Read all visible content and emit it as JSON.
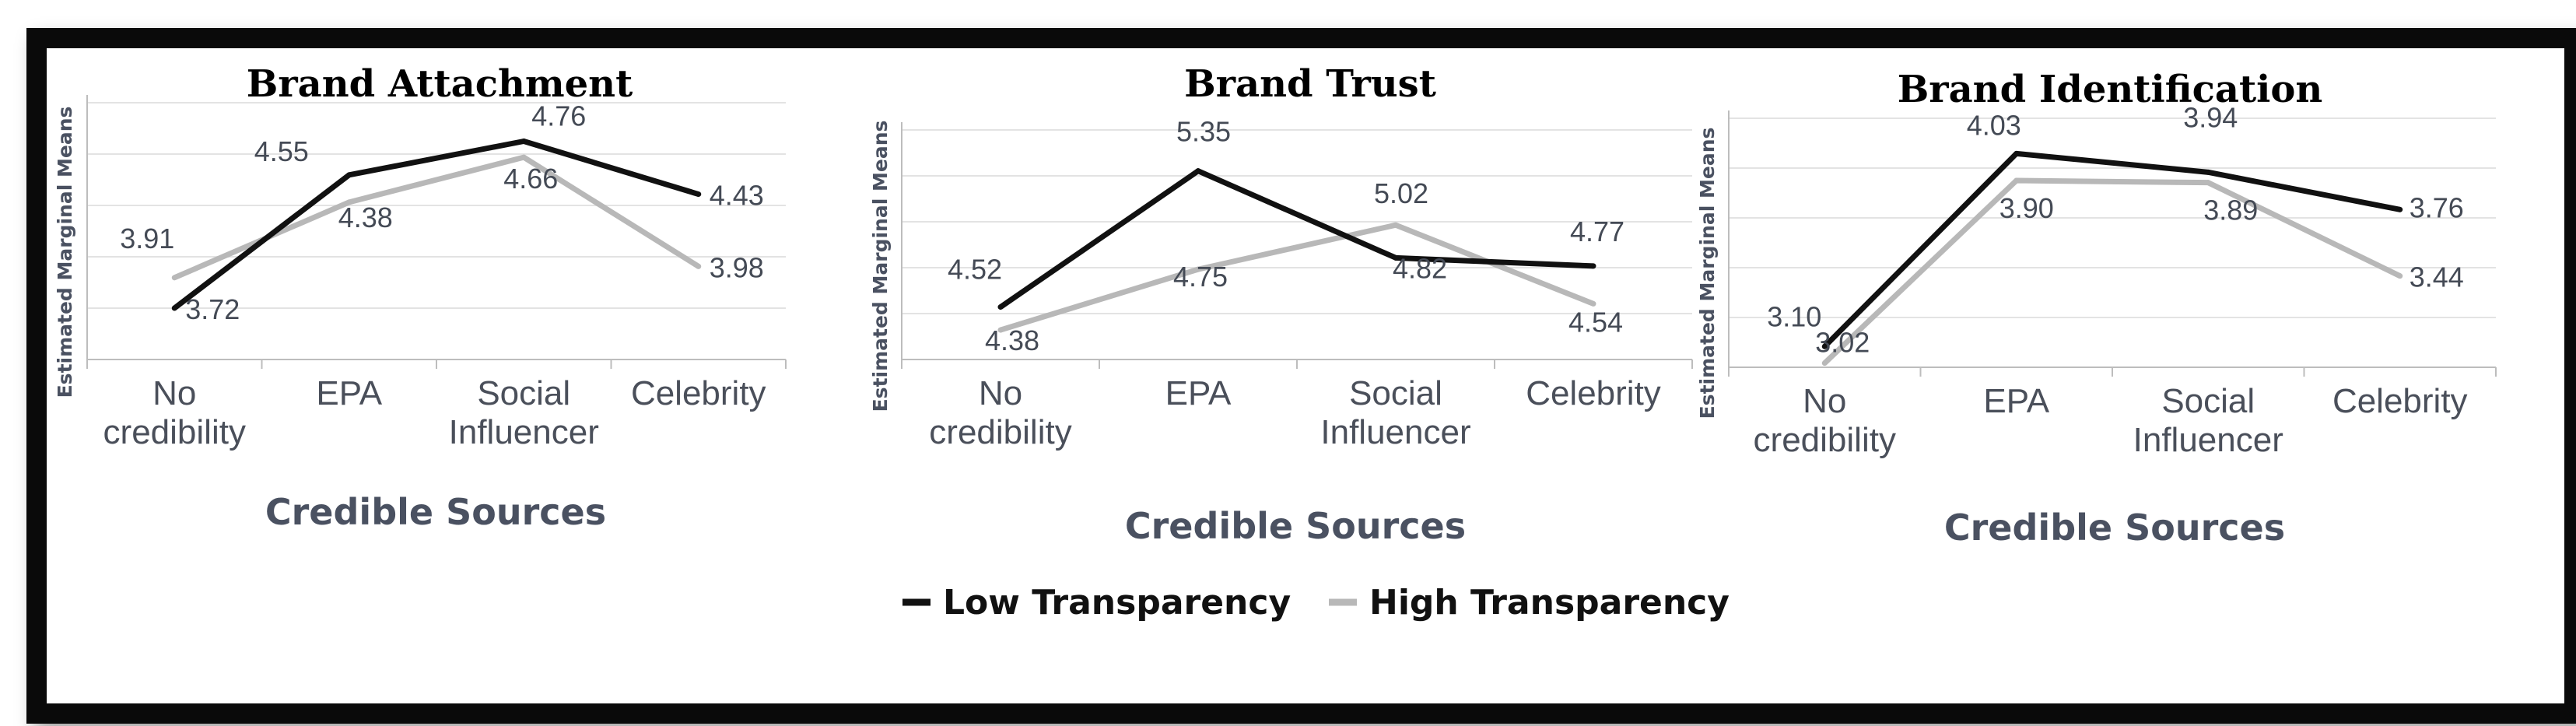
{
  "chart_data": [
    {
      "type": "line",
      "title": "Brand Attachment",
      "xlabel": "Credible Sources",
      "ylabel": "Estimated Marginal Means",
      "categories": [
        [
          "No",
          "credibility"
        ],
        [
          "EPA"
        ],
        [
          "Social",
          "Influencer"
        ],
        [
          "Celebrity"
        ]
      ],
      "ylim": [
        3.4,
        5.0
      ],
      "series": [
        {
          "name": "Low Transparency",
          "color": "#111111",
          "values": [
            3.72,
            4.55,
            4.76,
            4.43
          ],
          "labels": [
            "3.72",
            "4.55",
            "4.76",
            "4.43"
          ]
        },
        {
          "name": "High Transparency",
          "color": "#b8b8b8",
          "values": [
            3.91,
            4.38,
            4.66,
            3.98
          ],
          "labels": [
            "3.91",
            "4.38",
            "4.66",
            "3.98"
          ]
        }
      ]
    },
    {
      "type": "line",
      "title": "Brand Trust",
      "xlabel": "Credible Sources",
      "ylabel": "Estimated Marginal Means",
      "categories": [
        [
          "No",
          "credibility"
        ],
        [
          "EPA"
        ],
        [
          "Social",
          "Influencer"
        ],
        [
          "Celebrity"
        ]
      ],
      "ylim": [
        4.2,
        5.6
      ],
      "series": [
        {
          "name": "Low Transparency",
          "color": "#111111",
          "values": [
            4.52,
            5.35,
            4.82,
            4.77
          ],
          "labels": [
            "4.52",
            "5.35",
            "4.82",
            "4.77"
          ]
        },
        {
          "name": "High Transparency",
          "color": "#b8b8b8",
          "values": [
            4.38,
            4.75,
            5.02,
            4.54
          ],
          "labels": [
            "4.38",
            "4.75",
            "5.02",
            "4.54"
          ]
        }
      ]
    },
    {
      "type": "line",
      "title": "Brand Identification",
      "xlabel": "Credible Sources",
      "ylabel": "Estimated Marginal Means",
      "categories": [
        [
          "No",
          "credibility"
        ],
        [
          "EPA"
        ],
        [
          "Social",
          "Influencer"
        ],
        [
          "Celebrity"
        ]
      ],
      "ylim": [
        3.0,
        4.2
      ],
      "series": [
        {
          "name": "Low Transparency",
          "color": "#111111",
          "values": [
            3.1,
            4.03,
            3.94,
            3.76
          ],
          "labels": [
            "3.10",
            "4.03",
            "3.94",
            "3.76"
          ]
        },
        {
          "name": "High Transparency",
          "color": "#b8b8b8",
          "values": [
            3.02,
            3.9,
            3.89,
            3.44
          ],
          "labels": [
            "3.02",
            "3.90",
            "3.89",
            "3.44"
          ]
        }
      ]
    }
  ],
  "legend": {
    "items": [
      {
        "label": "Low Transparency",
        "color": "#111111"
      },
      {
        "label": "High Transparency",
        "color": "#b8b8b8"
      }
    ]
  }
}
